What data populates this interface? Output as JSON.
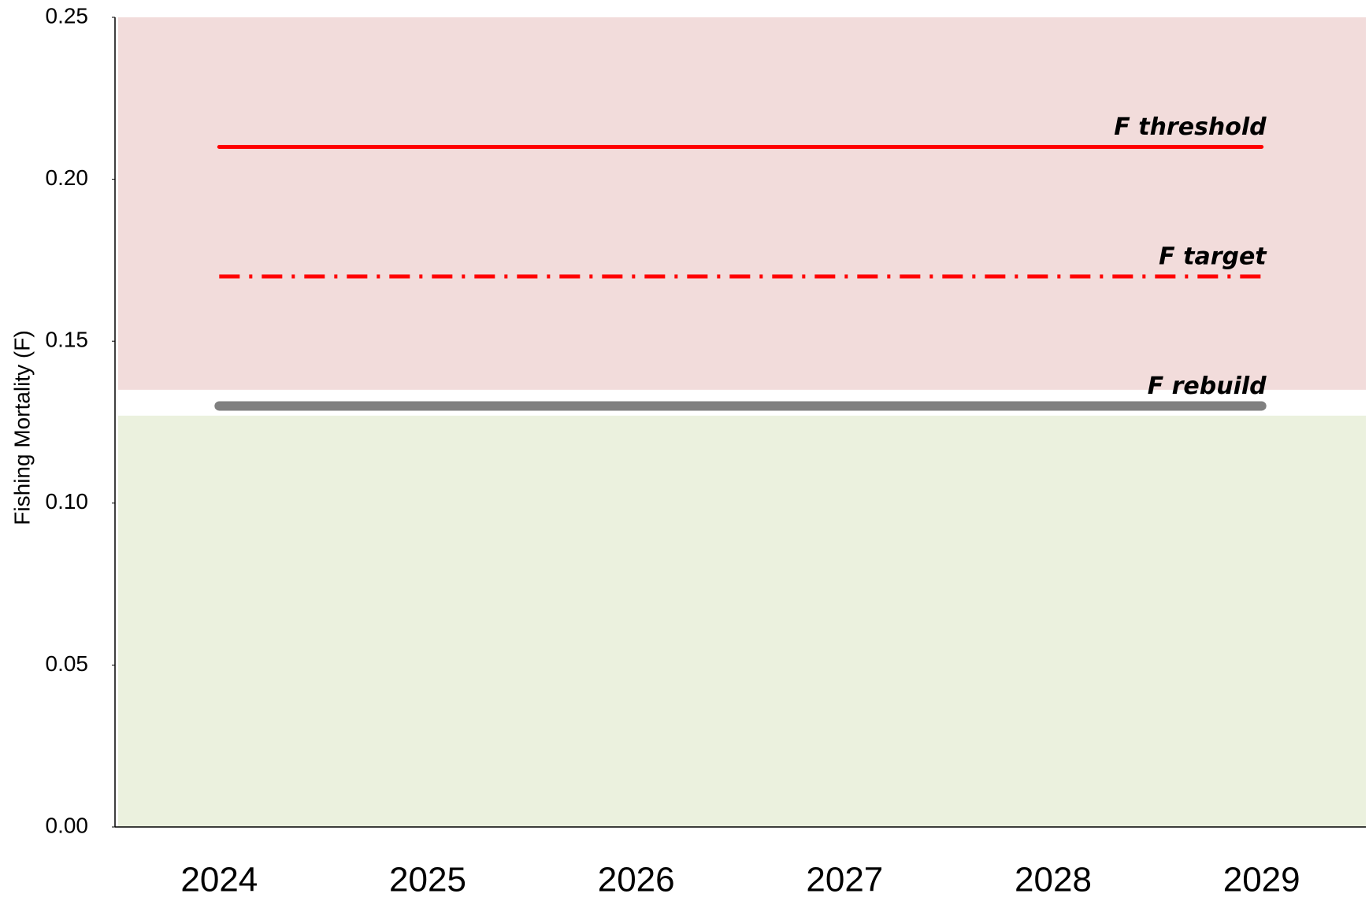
{
  "chart_data": {
    "type": "line",
    "y_label": "Fishing Mortality  (F)",
    "x": [
      2024,
      2025,
      2026,
      2027,
      2028,
      2029
    ],
    "xlim": [
      2023.5,
      2029.5
    ],
    "xticks": [
      2024,
      2025,
      2026,
      2027,
      2028,
      2029
    ],
    "ylim": [
      0,
      0.25
    ],
    "yticks": [
      {
        "value": 0,
        "label": "0.00"
      },
      {
        "value": 0.05,
        "label": "0.05"
      },
      {
        "value": 0.1,
        "label": "0.10"
      },
      {
        "value": 0.15,
        "label": "0.15"
      },
      {
        "value": 0.2,
        "label": "0.20"
      },
      {
        "value": 0.25,
        "label": "0.25"
      }
    ],
    "bands": [
      {
        "from": 0.135,
        "to": 0.25,
        "color": "#f2dcdb"
      },
      {
        "from": 0,
        "to": 0.127,
        "color": "#ebf1de"
      }
    ],
    "series": [
      {
        "name": "F threshold",
        "color": "#ff0000",
        "linestyle": "solid",
        "values": [
          0.21,
          0.21,
          0.21,
          0.21,
          0.21,
          0.21
        ]
      },
      {
        "name": "F target",
        "color": "#ff0000",
        "linestyle": "dashdot",
        "values": [
          0.17,
          0.17,
          0.17,
          0.17,
          0.17,
          0.17
        ]
      },
      {
        "name": "F rebuild",
        "color": "#808080",
        "linestyle": "solid",
        "values": [
          0.13,
          0.13,
          0.13,
          0.13,
          0.13,
          0.13
        ]
      }
    ]
  }
}
